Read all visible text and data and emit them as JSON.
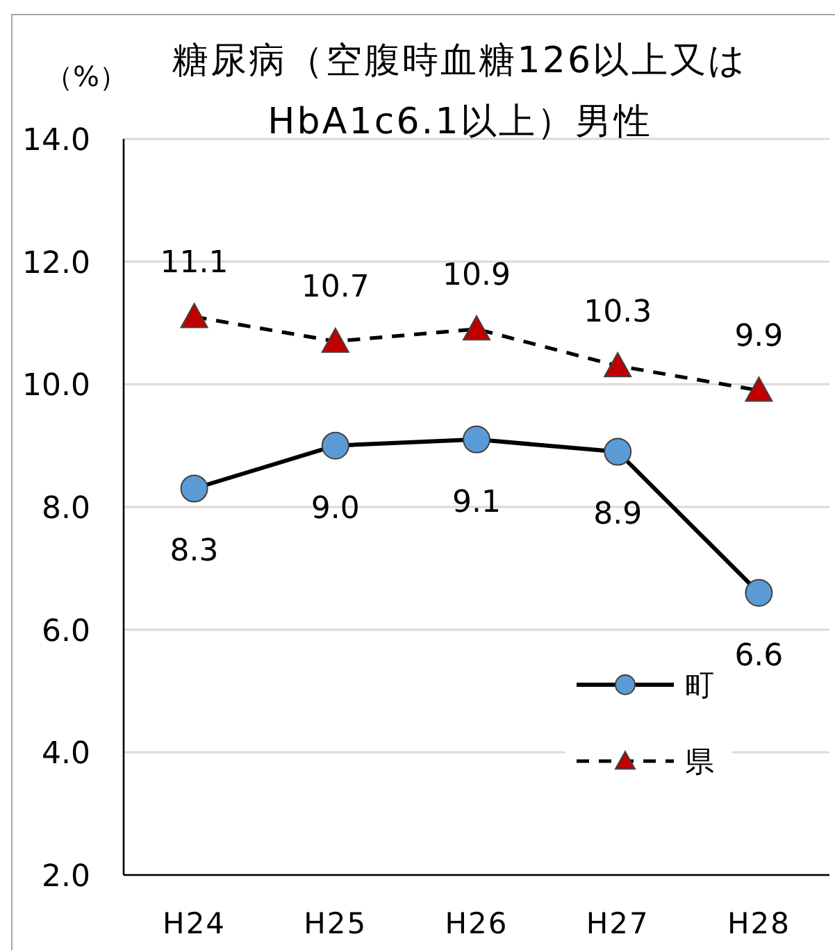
{
  "chart_data": {
    "type": "line",
    "title": "糖尿病（空腹時血糖126以上又はHbA1c6.1以上）男性",
    "ylabel": "（%）",
    "categories": [
      "H24",
      "H25",
      "H26",
      "H27",
      "H28"
    ],
    "series": [
      {
        "name": "町",
        "color": "#5b9bd5",
        "marker": "circle",
        "line_style": "solid",
        "values": [
          8.3,
          9.0,
          9.1,
          8.9,
          6.6
        ],
        "value_labels": [
          "8.3",
          "9.0",
          "9.1",
          "8.9",
          "6.6"
        ]
      },
      {
        "name": "県",
        "color": "#c00000",
        "marker": "triangle",
        "line_style": "dashed",
        "values": [
          11.1,
          10.7,
          10.9,
          10.3,
          9.9
        ],
        "value_labels": [
          "11.1",
          "10.7",
          "10.9",
          "10.3",
          "9.9"
        ]
      }
    ],
    "ylim": [
      2,
      14
    ],
    "yticks": [
      {
        "value": 2,
        "label": "2.0"
      },
      {
        "value": 4,
        "label": "4.0"
      },
      {
        "value": 6,
        "label": "6.0"
      },
      {
        "value": 8,
        "label": "8.0"
      },
      {
        "value": 10,
        "label": "10.0"
      },
      {
        "value": 12,
        "label": "12.0"
      },
      {
        "value": 14,
        "label": "14.0"
      }
    ],
    "grid": "y",
    "legend": "bottom right"
  }
}
